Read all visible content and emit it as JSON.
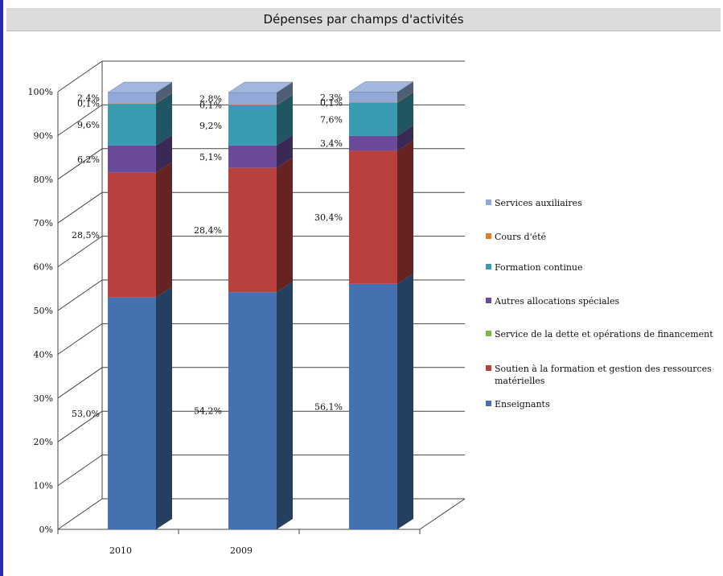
{
  "title": "Dépenses par champs d'activités",
  "chart_data": {
    "type": "bar",
    "stacked": true,
    "percent": true,
    "three_d": true,
    "categories": [
      "2010",
      "2009",
      ""
    ],
    "ylim": [
      0,
      100
    ],
    "y_ticks": [
      "0%",
      "10%",
      "20%",
      "30%",
      "40%",
      "50%",
      "60%",
      "70%",
      "80%",
      "90%",
      "100%"
    ],
    "legend_position": "right",
    "series": [
      {
        "name": "Enseignants",
        "color": "#4472b0",
        "values": [
          53.0,
          54.2,
          56.1
        ],
        "labels": [
          "53,0%",
          "54,2%",
          "56,1%"
        ]
      },
      {
        "name": "Soutien à la formation et gestion des ressources matérielles",
        "color": "#b8413e",
        "values": [
          28.5,
          28.4,
          30.4
        ],
        "labels": [
          "28,5%",
          "28,4%",
          "30,4%"
        ]
      },
      {
        "name": "Service de la dette et opérations de financement",
        "color": "#7ab648",
        "values": [
          0,
          0,
          0
        ],
        "labels": [
          "",
          "",
          ""
        ]
      },
      {
        "name": "Autres allocations spéciales",
        "color": "#6b4a9a",
        "values": [
          6.2,
          5.1,
          3.4
        ],
        "labels": [
          "6,2%",
          "5,1%",
          "3,4%"
        ]
      },
      {
        "name": "Formation continue",
        "color": "#3a9ab0",
        "values": [
          9.6,
          9.2,
          7.6
        ],
        "labels": [
          "9,6%",
          "9,2%",
          "7,6%"
        ]
      },
      {
        "name": "Cours d'été",
        "color": "#e07b2c",
        "values": [
          0.1,
          0.1,
          0.1
        ],
        "labels": [
          "0,1%",
          "0,1%",
          "0,1%"
        ]
      },
      {
        "name": "Services auxiliaires",
        "color": "#92a9d8",
        "values": [
          2.4,
          2.8,
          2.3
        ],
        "labels": [
          "2,4%",
          "2,8%",
          "2,3%"
        ]
      }
    ],
    "legend_order": [
      "Services auxiliaires",
      "Cours d'été",
      "Formation continue",
      "Autres allocations spéciales",
      "Service de la dette et opérations de financement",
      "Soutien à la formation et gestion des ressources matérielles",
      "Enseignants"
    ],
    "legend_lines": [
      [
        "Services auxiliaires"
      ],
      [
        "Cours d'été"
      ],
      [
        "Formation continue"
      ],
      [
        "Autres allocations spéciales"
      ],
      [
        "Service de la dette et opérations de financement"
      ],
      [
        "Soutien à la formation et gestion des ressources",
        "matérielles"
      ],
      [
        "Enseignants"
      ]
    ]
  }
}
